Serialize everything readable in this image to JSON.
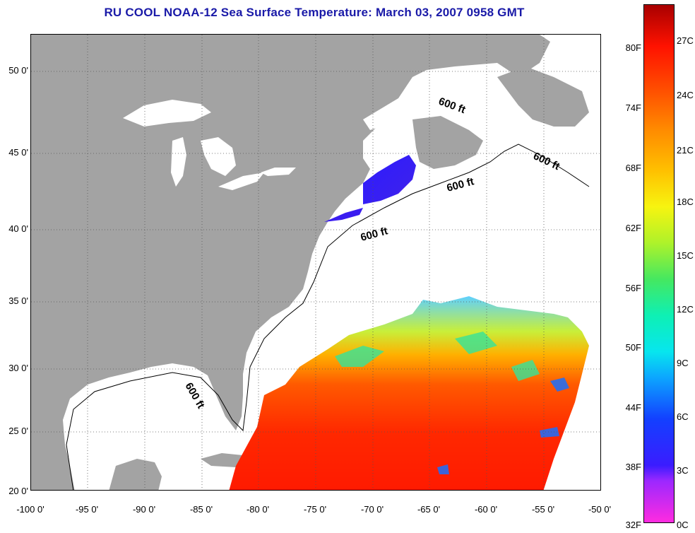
{
  "title": "RU COOL  NOAA-12  Sea Surface Temperature:  March 03, 2007 0958 GMT",
  "map": {
    "lat_ticks": [
      "50 0'",
      "45 0'",
      "40 0'",
      "35 0'",
      "30 0'",
      "25 0'",
      "20 0'"
    ],
    "lon_ticks": [
      "-100 0'",
      "-95 0'",
      "-90 0'",
      "-85 0'",
      "-80 0'",
      "-75 0'",
      "-70 0'",
      "-65 0'",
      "-60 0'",
      "-55 0'",
      "-50 0'"
    ],
    "isobath_labels": [
      "600 ft",
      "600 ft",
      "600 ft",
      "600 ft",
      "600 ft"
    ],
    "colors": {
      "land": "#a3a3a3",
      "water": "#ffffff",
      "title": "#1a1aa8"
    }
  },
  "colorbar": {
    "fahrenheit": [
      "80F",
      "74F",
      "68F",
      "62F",
      "56F",
      "50F",
      "44F",
      "38F",
      "32F"
    ],
    "celsius": [
      "27C",
      "24C",
      "21C",
      "18C",
      "15C",
      "12C",
      "9C",
      "6C",
      "3C",
      "0C"
    ]
  }
}
